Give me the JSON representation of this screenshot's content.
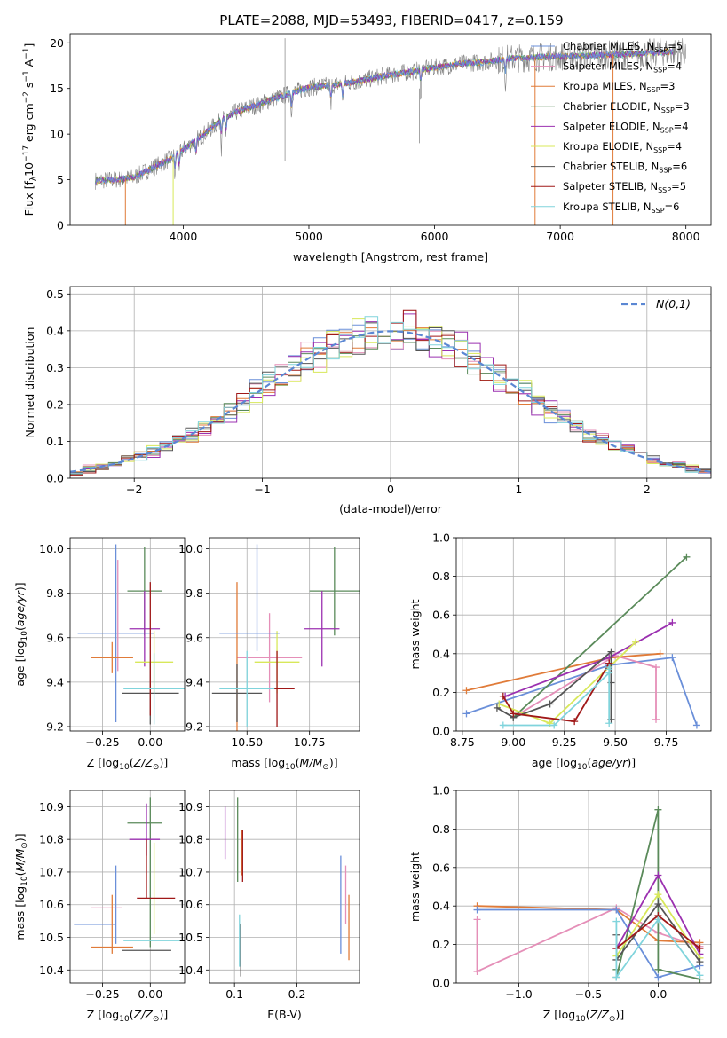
{
  "figure_title": "PLATE=2088, MJD=53493, FIBERID=0417, z=0.159",
  "colors": {
    "chabrier_miles": "#6a8fd9",
    "salpeter_miles": "#e58fb8",
    "kroupa_miles": "#e07b39",
    "chabrier_elodie": "#5a8a5a",
    "salpeter_elodie": "#9b30b0",
    "kroupa_elodie": "#d8e85a",
    "chabrier_stelib": "#555555",
    "salpeter_stelib": "#a01818",
    "kroupa_stelib": "#80d4dc",
    "data": "#808080"
  },
  "chart_data": [
    {
      "id": "spectrum",
      "type": "line",
      "xlabel": "wavelength [Angstrom, rest frame]",
      "ylabel": "Flux [f_λ10^-17 erg cm^-2 s^-1 A^-1]",
      "xlim": [
        3100,
        8200
      ],
      "ylim": [
        0,
        21
      ],
      "xticks": [
        4000,
        5000,
        6000,
        7000,
        8000
      ],
      "yticks": [
        0,
        5,
        10,
        15,
        20
      ],
      "legend_position": "top-right",
      "legend": [
        {
          "base": "Chabrier MILES, N",
          "sub": "SSP",
          "tail": "=5",
          "color_key": "chabrier_miles"
        },
        {
          "base": "Salpeter MILES, N",
          "sub": "SSP",
          "tail": "=4",
          "color_key": "salpeter_miles"
        },
        {
          "base": "Kroupa MILES, N",
          "sub": "SSP",
          "tail": "=3",
          "color_key": "kroupa_miles"
        },
        {
          "base": "Chabrier ELODIE, N",
          "sub": "SSP",
          "tail": "=3",
          "color_key": "chabrier_elodie"
        },
        {
          "base": "Salpeter ELODIE, N",
          "sub": "SSP",
          "tail": "=4",
          "color_key": "salpeter_elodie"
        },
        {
          "base": "Kroupa ELODIE, N",
          "sub": "SSP",
          "tail": "=4",
          "color_key": "kroupa_elodie"
        },
        {
          "base": "Chabrier STELIB, N",
          "sub": "SSP",
          "tail": "=6",
          "color_key": "chabrier_stelib"
        },
        {
          "base": "Salpeter STELIB, N",
          "sub": "SSP",
          "tail": "=5",
          "color_key": "salpeter_stelib"
        },
        {
          "base": "Kroupa STELIB, N",
          "sub": "SSP",
          "tail": "=6",
          "color_key": "kroupa_stelib"
        }
      ],
      "continuum": [
        [
          3300,
          4.9
        ],
        [
          3450,
          5.0
        ],
        [
          3600,
          5.2
        ],
        [
          3700,
          5.9
        ],
        [
          3800,
          6.6
        ],
        [
          3900,
          7.3
        ],
        [
          4000,
          8.3
        ],
        [
          4100,
          9.3
        ],
        [
          4200,
          10.4
        ],
        [
          4300,
          11.5
        ],
        [
          4400,
          12.3
        ],
        [
          4500,
          12.8
        ],
        [
          4600,
          13.2
        ],
        [
          4700,
          13.8
        ],
        [
          4800,
          14.2
        ],
        [
          4900,
          14.7
        ],
        [
          5000,
          15.1
        ],
        [
          5200,
          15.4
        ],
        [
          5400,
          15.8
        ],
        [
          5600,
          16.4
        ],
        [
          5800,
          16.8
        ],
        [
          6000,
          17.3
        ],
        [
          6200,
          17.7
        ],
        [
          6400,
          17.9
        ],
        [
          6600,
          18.3
        ],
        [
          6800,
          18.4
        ],
        [
          7000,
          18.5
        ],
        [
          7200,
          18.6
        ],
        [
          7400,
          18.7
        ],
        [
          7600,
          18.8
        ],
        [
          7800,
          19.0
        ],
        [
          8000,
          19.0
        ]
      ],
      "model_cutoffs": [
        {
          "key": "kroupa_miles",
          "x": 3540
        },
        {
          "key": "kroupa_elodie",
          "x": 3920
        },
        {
          "key": "kroupa_miles",
          "x": 6800
        },
        {
          "key": "kroupa_miles",
          "x": 7420
        }
      ]
    },
    {
      "id": "residuals",
      "type": "histogram",
      "xlabel": "(data-model)/error",
      "ylabel": "Normed distribution",
      "xlim": [
        -2.5,
        2.5
      ],
      "ylim": [
        0,
        0.52
      ],
      "xticks": [
        -2,
        -1,
        0,
        1,
        2
      ],
      "yticks": [
        0.0,
        0.1,
        0.2,
        0.3,
        0.4,
        0.5
      ],
      "bin_width": 0.1,
      "legend": "N(0,1)",
      "legend_position": "top-right",
      "reference_curve": "gaussian(0,1)"
    },
    {
      "id": "age_vs_Z",
      "type": "errorbar",
      "xlabel": "Z [log10(Z/Z⊙)]",
      "ylabel": "age  [log10(age/yr)]",
      "xlim": [
        -0.42,
        0.18
      ],
      "ylim": [
        9.18,
        10.05
      ],
      "xticks": [
        -0.25,
        0.0
      ],
      "yticks": [
        9.2,
        9.4,
        9.6,
        9.8,
        10.0
      ],
      "points": [
        {
          "key": "chabrier_miles",
          "x": -0.18,
          "xerr": 0.2,
          "y": 9.62,
          "yerr": 0.4
        },
        {
          "key": "salpeter_miles",
          "x": -0.17,
          "xerr": 0.0,
          "y": 9.7,
          "yerr": 0.25
        },
        {
          "key": "kroupa_miles",
          "x": -0.2,
          "xerr": 0.11,
          "y": 9.51,
          "yerr": 0.07
        },
        {
          "key": "chabrier_elodie",
          "x": -0.03,
          "xerr": 0.09,
          "y": 9.81,
          "yerr": 0.2
        },
        {
          "key": "salpeter_elodie",
          "x": -0.03,
          "xerr": 0.08,
          "y": 9.64,
          "yerr": 0.17
        },
        {
          "key": "kroupa_elodie",
          "x": 0.02,
          "xerr": 0.1,
          "y": 9.49,
          "yerr": 0.14
        },
        {
          "key": "chabrier_stelib",
          "x": 0.0,
          "xerr": 0.15,
          "y": 9.35,
          "yerr": 0.14
        },
        {
          "key": "salpeter_stelib",
          "x": 0.0,
          "xerr": 0.0,
          "y": 9.55,
          "yerr": 0.3
        },
        {
          "key": "kroupa_stelib",
          "x": 0.02,
          "xerr": 0.16,
          "y": 9.37,
          "yerr": 0.16
        }
      ]
    },
    {
      "id": "age_vs_mass",
      "type": "errorbar",
      "xlabel": "mass [log10(M/M⊙)]",
      "ylabel": "",
      "xlim": [
        10.35,
        10.95
      ],
      "ylim": [
        9.18,
        10.05
      ],
      "xticks": [
        10.5,
        10.75
      ],
      "yticks": [
        9.2,
        9.4,
        9.6,
        9.8,
        10.0
      ],
      "points": [
        {
          "key": "chabrier_miles",
          "x": 10.54,
          "xerr": 0.0,
          "y": 9.78,
          "yerr": 0.24
        },
        {
          "key": "salpeter_miles",
          "x": 10.59,
          "xerr": 0.13,
          "y": 9.51,
          "yerr": 0.2
        },
        {
          "key": "kroupa_miles",
          "x": 10.46,
          "xerr": 0.0,
          "y": 9.51,
          "yerr": 0.34
        },
        {
          "key": "chabrier_elodie",
          "x": 10.85,
          "xerr": 0.1,
          "y": 9.81,
          "yerr": 0.2
        },
        {
          "key": "salpeter_elodie",
          "x": 10.8,
          "xerr": 0.07,
          "y": 9.64,
          "yerr": 0.17
        },
        {
          "key": "kroupa_elodie",
          "x": 10.62,
          "xerr": 0.09,
          "y": 9.49,
          "yerr": 0.14
        },
        {
          "key": "chabrier_stelib",
          "x": 10.46,
          "xerr": 0.1,
          "y": 9.35,
          "yerr": 0.13
        },
        {
          "key": "salpeter_stelib",
          "x": 10.62,
          "xerr": 0.07,
          "y": 9.37,
          "yerr": 0.17
        },
        {
          "key": "kroupa_stelib",
          "x": 10.5,
          "xerr": 0.11,
          "y": 9.37,
          "yerr": 0.17
        },
        {
          "key": "chabrier_miles",
          "x": 10.51,
          "xerr": 0.12,
          "y": 9.62,
          "yerr": 0.0
        }
      ]
    },
    {
      "id": "weight_vs_age",
      "type": "line",
      "xlabel": "age  [log10(age/yr)]",
      "ylabel": "mass weight",
      "xlim": [
        8.72,
        9.97
      ],
      "ylim": [
        0,
        1
      ],
      "xticks": [
        8.75,
        9.0,
        9.25,
        9.5,
        9.75
      ],
      "yticks": [
        0.0,
        0.2,
        0.4,
        0.6,
        0.8,
        1.0
      ],
      "series": [
        {
          "key": "chabrier_miles",
          "x": [
            8.77,
            9.47,
            9.78,
            9.9
          ],
          "y": [
            0.09,
            0.34,
            0.38,
            0.03
          ]
        },
        {
          "key": "salpeter_miles",
          "x": [
            9.0,
            9.5,
            9.7,
            9.7
          ],
          "y": [
            0.07,
            0.39,
            0.33,
            0.06
          ]
        },
        {
          "key": "kroupa_miles",
          "x": [
            8.77,
            9.48,
            9.72
          ],
          "y": [
            0.21,
            0.38,
            0.4
          ]
        },
        {
          "key": "chabrier_elodie",
          "x": [
            9.0,
            9.85
          ],
          "y": [
            0.07,
            0.9
          ]
        },
        {
          "key": "salpeter_elodie",
          "x": [
            8.96,
            9.47,
            9.78
          ],
          "y": [
            0.18,
            0.38,
            0.56
          ]
        },
        {
          "key": "kroupa_elodie",
          "x": [
            8.93,
            9.18,
            9.6
          ],
          "y": [
            0.14,
            0.04,
            0.46
          ]
        },
        {
          "key": "chabrier_stelib",
          "x": [
            8.92,
            9.0,
            9.18,
            9.48,
            9.48,
            9.48
          ],
          "y": [
            0.12,
            0.07,
            0.14,
            0.41,
            0.25,
            0.06
          ]
        },
        {
          "key": "salpeter_stelib",
          "x": [
            8.95,
            9.0,
            9.3,
            9.47,
            9.47
          ],
          "y": [
            0.18,
            0.09,
            0.05,
            0.35,
            0.35
          ]
        },
        {
          "key": "kroupa_stelib",
          "x": [
            8.95,
            9.2,
            9.47,
            9.47,
            9.47,
            9.47
          ],
          "y": [
            0.03,
            0.03,
            0.3,
            0.32,
            0.33,
            0.04
          ]
        }
      ]
    },
    {
      "id": "mass_vs_Z",
      "type": "errorbar",
      "xlabel": "Z [log10(Z/Z⊙)]",
      "ylabel": "mass [log10(M/M⊙)]",
      "xlim": [
        -0.42,
        0.18
      ],
      "ylim": [
        10.36,
        10.95
      ],
      "xticks": [
        -0.25,
        0.0
      ],
      "yticks": [
        10.4,
        10.5,
        10.6,
        10.7,
        10.8,
        10.9
      ],
      "points": [
        {
          "key": "chabrier_miles",
          "x": -0.29,
          "xerr": 0.11,
          "y": 10.54,
          "yerr": 0.0
        },
        {
          "key": "chabrier_miles",
          "x": -0.18,
          "xerr": 0.0,
          "y": 10.6,
          "yerr": 0.12
        },
        {
          "key": "salpeter_miles",
          "x": -0.23,
          "xerr": 0.08,
          "y": 10.59,
          "yerr": 0.0
        },
        {
          "key": "kroupa_miles",
          "x": -0.2,
          "xerr": 0.11,
          "y": 10.47,
          "yerr": 0.0
        },
        {
          "key": "kroupa_miles",
          "x": -0.2,
          "xerr": 0.0,
          "y": 10.54,
          "yerr": 0.09
        },
        {
          "key": "chabrier_elodie",
          "x": -0.03,
          "xerr": 0.09,
          "y": 10.85,
          "yerr": 0.0
        },
        {
          "key": "chabrier_elodie",
          "x": 0.0,
          "xerr": 0.0,
          "y": 10.7,
          "yerr": 0.23
        },
        {
          "key": "salpeter_elodie",
          "x": -0.03,
          "xerr": 0.08,
          "y": 10.8,
          "yerr": 0.0
        },
        {
          "key": "salpeter_elodie",
          "x": -0.02,
          "xerr": 0.0,
          "y": 10.83,
          "yerr": 0.08
        },
        {
          "key": "kroupa_elodie",
          "x": 0.02,
          "xerr": 0.0,
          "y": 10.65,
          "yerr": 0.14
        },
        {
          "key": "chabrier_stelib",
          "x": -0.02,
          "xerr": 0.13,
          "y": 10.46,
          "yerr": 0.0
        },
        {
          "key": "salpeter_stelib",
          "x": 0.03,
          "xerr": 0.1,
          "y": 10.62,
          "yerr": 0.0
        },
        {
          "key": "salpeter_stelib",
          "x": -0.02,
          "xerr": 0.0,
          "y": 10.71,
          "yerr": 0.09
        },
        {
          "key": "kroupa_stelib",
          "x": 0.02,
          "xerr": 0.16,
          "y": 10.49,
          "yerr": 0.0
        }
      ]
    },
    {
      "id": "mass_vs_ebv",
      "type": "errorbar",
      "xlabel": "E(B-V)",
      "ylabel": "",
      "xlim": [
        0.06,
        0.3
      ],
      "ylim": [
        10.36,
        10.95
      ],
      "xticks": [
        0.1,
        0.2
      ],
      "yticks": [
        10.4,
        10.5,
        10.6,
        10.7,
        10.8,
        10.9
      ],
      "points": [
        {
          "key": "salpeter_elodie",
          "x": 0.085,
          "xerr": 0.0,
          "y": 10.82,
          "yerr": 0.08
        },
        {
          "key": "chabrier_elodie",
          "x": 0.105,
          "xerr": 0.0,
          "y": 10.8,
          "yerr": 0.13
        },
        {
          "key": "kroupa_miles",
          "x": 0.112,
          "xerr": 0.0,
          "y": 10.76,
          "yerr": 0.07
        },
        {
          "key": "chabrier_stelib",
          "x": 0.11,
          "xerr": 0.0,
          "y": 10.46,
          "yerr": 0.08
        },
        {
          "key": "kroupa_stelib",
          "x": 0.108,
          "xerr": 0.0,
          "y": 10.49,
          "yerr": 0.08
        },
        {
          "key": "salpeter_stelib",
          "x": 0.113,
          "xerr": 0.0,
          "y": 10.75,
          "yerr": 0.08
        },
        {
          "key": "chabrier_miles",
          "x": 0.27,
          "xerr": 0.0,
          "y": 10.6,
          "yerr": 0.15
        },
        {
          "key": "salpeter_miles",
          "x": 0.278,
          "xerr": 0.0,
          "y": 10.63,
          "yerr": 0.09
        },
        {
          "key": "kroupa_miles",
          "x": 0.283,
          "xerr": 0.0,
          "y": 10.53,
          "yerr": 0.1
        }
      ]
    },
    {
      "id": "weight_vs_Z",
      "type": "line",
      "xlabel": "Z [log10(Z/Z⊙)]",
      "ylabel": "mass weight",
      "xlim": [
        -1.45,
        0.38
      ],
      "ylim": [
        0,
        1
      ],
      "xticks": [
        -1.0,
        -0.5,
        0.0
      ],
      "yticks": [
        0.0,
        0.2,
        0.4,
        0.6,
        0.8,
        1.0
      ],
      "series": [
        {
          "key": "salpeter_miles",
          "x": [
            -1.3,
            -1.3,
            -0.3,
            0.0,
            0.3
          ],
          "y": [
            0.33,
            0.06,
            0.39,
            0.26,
            0.19
          ]
        },
        {
          "key": "kroupa_miles",
          "x": [
            -1.3,
            -0.3,
            0.0,
            0.3
          ],
          "y": [
            0.4,
            0.38,
            0.22,
            0.21
          ]
        },
        {
          "key": "chabrier_miles",
          "x": [
            -1.3,
            -0.3,
            0.0,
            0.3
          ],
          "y": [
            0.38,
            0.38,
            0.03,
            0.09
          ]
        },
        {
          "key": "chabrier_elodie",
          "x": [
            -0.3,
            -0.3,
            0.0,
            0.0,
            0.3
          ],
          "y": [
            0.07,
            0.03,
            0.9,
            0.07,
            0.02
          ]
        },
        {
          "key": "salpeter_elodie",
          "x": [
            -0.3,
            0.0,
            0.3
          ],
          "y": [
            0.18,
            0.56,
            0.15
          ]
        },
        {
          "key": "kroupa_elodie",
          "x": [
            -0.3,
            0.0,
            0.3
          ],
          "y": [
            0.14,
            0.46,
            0.13
          ]
        },
        {
          "key": "chabrier_stelib",
          "x": [
            -0.3,
            -0.3,
            0.0,
            0.3
          ],
          "y": [
            0.25,
            0.12,
            0.41,
            0.11
          ]
        },
        {
          "key": "salpeter_stelib",
          "x": [
            -0.3,
            0.0,
            0.3
          ],
          "y": [
            0.18,
            0.35,
            0.18
          ]
        },
        {
          "key": "kroupa_stelib",
          "x": [
            -0.3,
            -0.3,
            0.0,
            0.3
          ],
          "y": [
            0.32,
            0.03,
            0.33,
            0.04
          ]
        }
      ]
    }
  ]
}
